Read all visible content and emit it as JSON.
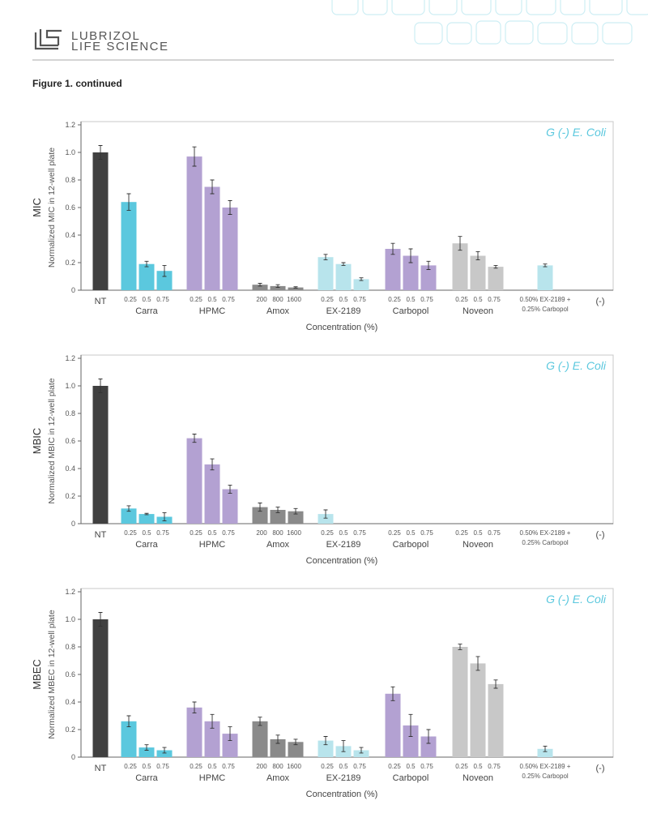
{
  "header": {
    "brand_line1": "LUBRIZOL",
    "brand_line2": "LIFE SCIENCE"
  },
  "figure_caption": "Figure 1. continued",
  "chart_data": [
    {
      "type": "bar",
      "y_label": "MIC",
      "y_sublabel": "Normalized MIC in 12-well plate",
      "x_label": "Concentration (%)",
      "annotation": "G (-) E. Coli",
      "ylim": [
        0,
        1.2
      ],
      "yticks": [
        0,
        0.2,
        0.4,
        0.6,
        0.8,
        {
          "value": 1,
          "label": "1.0"
        },
        1.2
      ],
      "groups": [
        {
          "label": "NT",
          "color": "#404040",
          "values": [
            1.0
          ],
          "errors": [
            0.05
          ]
        },
        {
          "label": "Carra",
          "levels": [
            "0.25",
            "0.5",
            "0.75"
          ],
          "color": "#5bc8de",
          "values": [
            0.64,
            0.19,
            0.14
          ],
          "errors": [
            0.06,
            0.02,
            0.04
          ]
        },
        {
          "label": "HPMC",
          "levels": [
            "0.25",
            "0.5",
            "0.75"
          ],
          "color": "#b3a1d2",
          "values": [
            0.97,
            0.75,
            0.6
          ],
          "errors": [
            0.07,
            0.05,
            0.05
          ]
        },
        {
          "label": "Amox",
          "levels": [
            "200",
            "800",
            "1600"
          ],
          "color": "#8a8a8a",
          "values": [
            0.04,
            0.03,
            0.02
          ],
          "errors": [
            0.01,
            0.01,
            0.005
          ]
        },
        {
          "label": "EX-2189",
          "levels": [
            "0.25",
            "0.5",
            "0.75"
          ],
          "color": "#b8e4ec",
          "values": [
            0.24,
            0.19,
            0.08
          ],
          "errors": [
            0.02,
            0.01,
            0.01
          ]
        },
        {
          "label": "Carbopol",
          "levels": [
            "0.25",
            "0.5",
            "0.75"
          ],
          "color": "#b3a1d2",
          "values": [
            0.3,
            0.25,
            0.18
          ],
          "errors": [
            0.04,
            0.05,
            0.03
          ]
        },
        {
          "label": "Noveon",
          "levels": [
            "0.25",
            "0.5",
            "0.75"
          ],
          "color": "#c8c8c8",
          "values": [
            0.34,
            0.25,
            0.17
          ],
          "errors": [
            0.05,
            0.03,
            0.01
          ]
        },
        {
          "label": [
            "0.50% EX-2189 +",
            "0.25% Carbopol"
          ],
          "color": "#b8e4ec",
          "values": [
            0.18
          ],
          "errors": [
            0.01
          ]
        },
        {
          "label": "(-)",
          "color": "#8a8a8a",
          "values": [
            null
          ],
          "errors": [
            null
          ]
        }
      ]
    },
    {
      "type": "bar",
      "y_label": "MBIC",
      "y_sublabel": "Normalized MBIC in 12-well plate",
      "x_label": "Concentration (%)",
      "annotation": "G (-) E. Coli",
      "ylim": [
        0,
        1.2
      ],
      "yticks": [
        0,
        0.2,
        0.4,
        0.6,
        0.8,
        {
          "value": 1,
          "label": "1.0"
        },
        1.2
      ],
      "groups": [
        {
          "label": "NT",
          "color": "#404040",
          "values": [
            1.0
          ],
          "errors": [
            0.05
          ]
        },
        {
          "label": "Carra",
          "levels": [
            "0.25",
            "0.5",
            "0.75"
          ],
          "color": "#5bc8de",
          "values": [
            0.11,
            0.07,
            0.05
          ],
          "errors": [
            0.02,
            0.005,
            0.03
          ]
        },
        {
          "label": "HPMC",
          "levels": [
            "0.25",
            "0.5",
            "0.75"
          ],
          "color": "#b3a1d2",
          "values": [
            0.62,
            0.43,
            0.25
          ],
          "errors": [
            0.03,
            0.04,
            0.03
          ]
        },
        {
          "label": "Amox",
          "levels": [
            "200",
            "800",
            "1600"
          ],
          "color": "#8a8a8a",
          "values": [
            0.12,
            0.1,
            0.09
          ],
          "errors": [
            0.03,
            0.02,
            0.02
          ]
        },
        {
          "label": "EX-2189",
          "levels": [
            "0.25",
            "0.5",
            "0.75"
          ],
          "color": "#b8e4ec",
          "values": [
            0.07,
            null,
            null
          ],
          "errors": [
            0.03,
            null,
            null
          ]
        },
        {
          "label": "Carbopol",
          "levels": [
            "0.25",
            "0.5",
            "0.75"
          ],
          "color": "#b3a1d2",
          "values": [
            null,
            null,
            null
          ],
          "errors": [
            null,
            null,
            null
          ]
        },
        {
          "label": "Noveon",
          "levels": [
            "0.25",
            "0.5",
            "0.75"
          ],
          "color": "#c8c8c8",
          "values": [
            null,
            null,
            null
          ],
          "errors": [
            null,
            null,
            null
          ]
        },
        {
          "label": [
            "0.50% EX-2189 +",
            "0.25% Carbopol"
          ],
          "color": "#b8e4ec",
          "values": [
            null
          ],
          "errors": [
            null
          ]
        },
        {
          "label": "(-)",
          "color": "#8a8a8a",
          "values": [
            null
          ],
          "errors": [
            null
          ]
        }
      ]
    },
    {
      "type": "bar",
      "y_label": "MBEC",
      "y_sublabel": "Normalized MBEC in 12-well plate",
      "x_label": "Concentration (%)",
      "annotation": "G (-) E. Coli",
      "ylim": [
        0,
        1.2
      ],
      "yticks": [
        0,
        0.2,
        0.4,
        0.6,
        0.8,
        {
          "value": 1,
          "label": "1.0"
        },
        1.2
      ],
      "groups": [
        {
          "label": "NT",
          "color": "#404040",
          "values": [
            1.0
          ],
          "errors": [
            0.05
          ]
        },
        {
          "label": "Carra",
          "levels": [
            "0.25",
            "0.5",
            "0.75"
          ],
          "color": "#5bc8de",
          "values": [
            0.26,
            0.07,
            0.05
          ],
          "errors": [
            0.04,
            0.02,
            0.02
          ]
        },
        {
          "label": "HPMC",
          "levels": [
            "0.25",
            "0.5",
            "0.75"
          ],
          "color": "#b3a1d2",
          "values": [
            0.36,
            0.26,
            0.17
          ],
          "errors": [
            0.04,
            0.05,
            0.05
          ]
        },
        {
          "label": "Amox",
          "levels": [
            "200",
            "800",
            "1600"
          ],
          "color": "#8a8a8a",
          "values": [
            0.26,
            0.13,
            0.11
          ],
          "errors": [
            0.03,
            0.03,
            0.02
          ]
        },
        {
          "label": "EX-2189",
          "levels": [
            "0.25",
            "0.5",
            "0.75"
          ],
          "color": "#b8e4ec",
          "values": [
            0.12,
            0.08,
            0.05
          ],
          "errors": [
            0.03,
            0.04,
            0.02
          ]
        },
        {
          "label": "Carbopol",
          "levels": [
            "0.25",
            "0.5",
            "0.75"
          ],
          "color": "#b3a1d2",
          "values": [
            0.46,
            0.23,
            0.15
          ],
          "errors": [
            0.05,
            0.08,
            0.05
          ]
        },
        {
          "label": "Noveon",
          "levels": [
            "0.25",
            "0.5",
            "0.75"
          ],
          "color": "#c8c8c8",
          "values": [
            0.8,
            0.68,
            0.53
          ],
          "errors": [
            0.02,
            0.05,
            0.03
          ]
        },
        {
          "label": [
            "0.50% EX-2189 +",
            "0.25% Carbopol"
          ],
          "color": "#b8e4ec",
          "values": [
            0.06
          ],
          "errors": [
            0.02
          ]
        },
        {
          "label": "(-)",
          "color": "#8a8a8a",
          "values": [
            null
          ],
          "errors": [
            null
          ]
        }
      ]
    }
  ]
}
